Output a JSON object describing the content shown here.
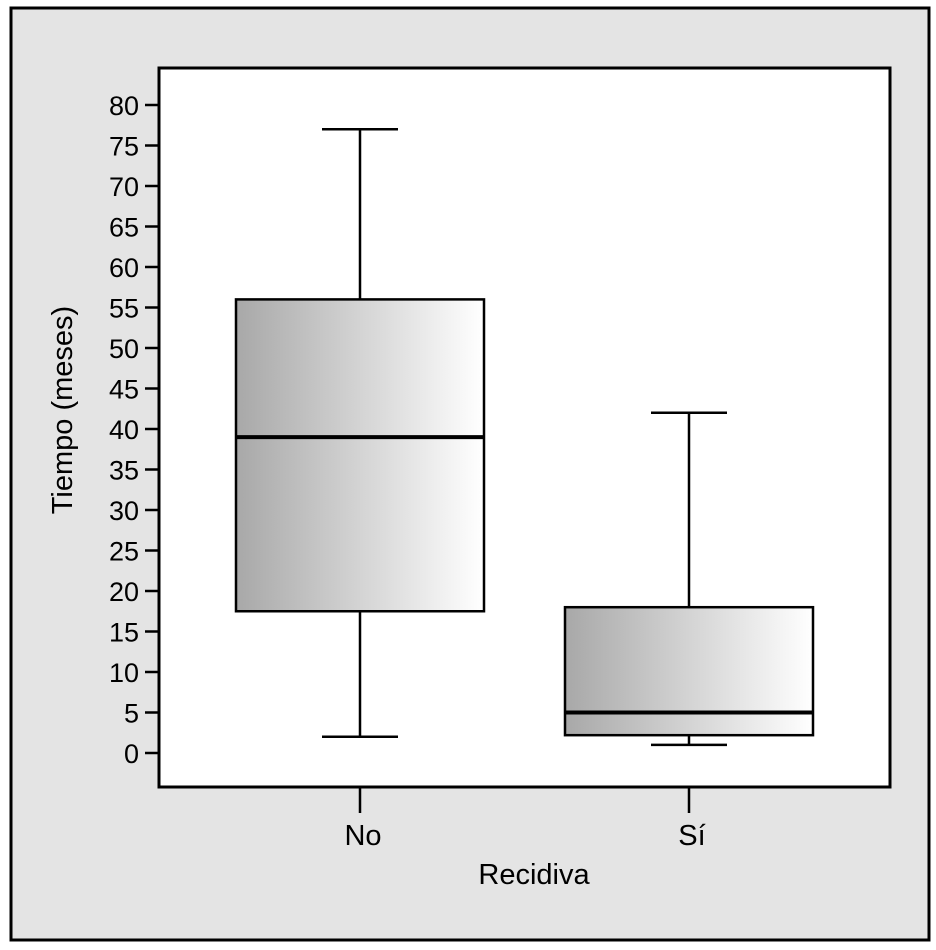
{
  "chart_data": {
    "type": "box",
    "title": "",
    "xlabel": "Recidiva",
    "ylabel": "Tiempo (meses)",
    "categories": [
      "No",
      "Sí"
    ],
    "ylim": [
      -4,
      84.5
    ],
    "yticks": [
      0,
      5,
      10,
      15,
      20,
      25,
      30,
      35,
      40,
      45,
      50,
      55,
      60,
      65,
      70,
      75,
      80
    ],
    "grid": false,
    "boxes": [
      {
        "category": "No",
        "whisker_low": 2,
        "q1": 17.5,
        "median": 39,
        "q3": 56,
        "whisker_high": 77
      },
      {
        "category": "Sí",
        "whisker_low": 1,
        "q1": 2.2,
        "median": 5,
        "q3": 18,
        "whisker_high": 42
      }
    ]
  },
  "colors": {
    "frame_background": "#e4e4e4",
    "plot_background": "#ffffff",
    "box_gradient_dark": "#a8a8a8",
    "box_gradient_light": "#ffffff",
    "line": "#000000"
  }
}
